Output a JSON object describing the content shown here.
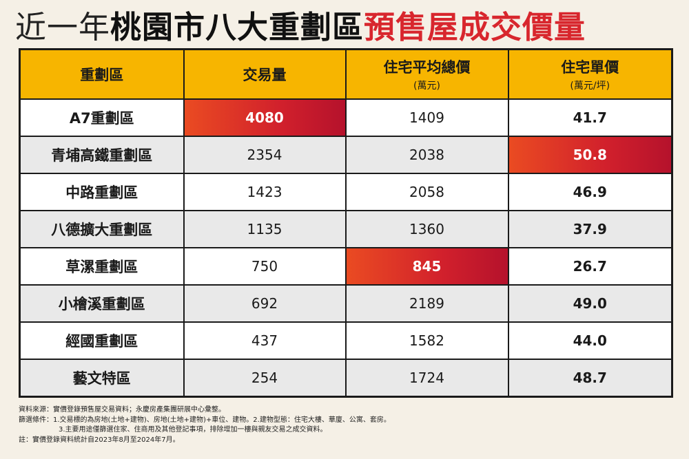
{
  "title": {
    "part1": "近一年",
    "part2": "桃園市八大重劃區",
    "part3": "預售屋成交價量"
  },
  "headers": [
    {
      "label": "重劃區",
      "sub": ""
    },
    {
      "label": "交易量",
      "sub": ""
    },
    {
      "label": "住宅平均總價",
      "sub": "(萬元)"
    },
    {
      "label": "住宅單價",
      "sub": "(萬元/坪)"
    }
  ],
  "rows": [
    {
      "name": "A7重劃區",
      "volume": "4080",
      "avg_total": "1409",
      "unit_price": "41.7"
    },
    {
      "name": "青埔高鐵重劃區",
      "volume": "2354",
      "avg_total": "2038",
      "unit_price": "50.8"
    },
    {
      "name": "中路重劃區",
      "volume": "1423",
      "avg_total": "2058",
      "unit_price": "46.9"
    },
    {
      "name": "八德擴大重劃區",
      "volume": "1135",
      "avg_total": "1360",
      "unit_price": "37.9"
    },
    {
      "name": "草漯重劃區",
      "volume": "750",
      "avg_total": "845",
      "unit_price": "26.7"
    },
    {
      "name": "小檜溪重劃區",
      "volume": "692",
      "avg_total": "2189",
      "unit_price": "49.0"
    },
    {
      "name": "經國重劃區",
      "volume": "437",
      "avg_total": "1582",
      "unit_price": "44.0"
    },
    {
      "name": "藝文特區",
      "volume": "254",
      "avg_total": "1724",
      "unit_price": "48.7"
    }
  ],
  "highlight_colors": {
    "start": "#ea4b22",
    "end": "#b5122c"
  },
  "notes": {
    "source": "資料來源：實價登錄預售屋交易資料；永慶房產集團研展中心彙整。",
    "criteria": "篩選條件：1.交易標的為房地(土地+建物)、房地(土地+建物)+車位、建物。2.建物型態：住宅大樓、華廈、公寓、套房。",
    "criteria2": "3.主要用途僅篩選住家、住商用及其他登記事項，排除增加一樓與親友交易之成交資料。",
    "remark": "註：實價登錄資料統計自2023年8月至2024年7月。"
  }
}
